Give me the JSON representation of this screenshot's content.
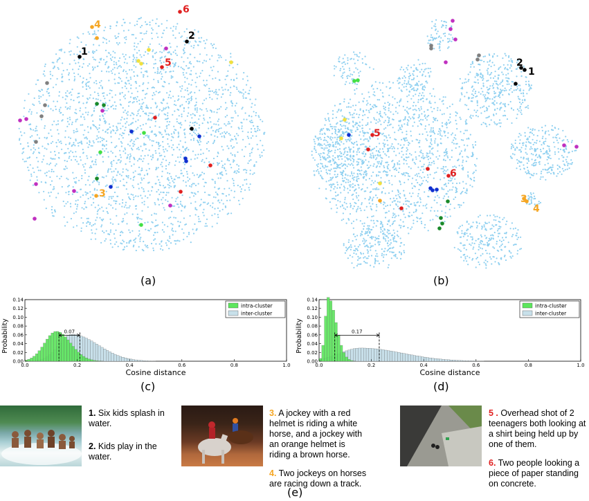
{
  "panels": {
    "a": "(a)",
    "b": "(b)",
    "c": "(c)",
    "d": "(d)",
    "e": "(e)"
  },
  "scatter_markers": {
    "a": [
      {
        "label": "1",
        "color": "#000000"
      },
      {
        "label": "2",
        "color": "#000000"
      },
      {
        "label": "3",
        "color": "#f5a623"
      },
      {
        "label": "4",
        "color": "#f5a623"
      },
      {
        "label": "5",
        "color": "#e02020"
      },
      {
        "label": "6",
        "color": "#e02020"
      }
    ],
    "b": [
      {
        "label": "1",
        "color": "#000000"
      },
      {
        "label": "2",
        "color": "#000000"
      },
      {
        "label": "3",
        "color": "#f5a623"
      },
      {
        "label": "4",
        "color": "#f5a623"
      },
      {
        "label": "5",
        "color": "#e02020"
      },
      {
        "label": "6",
        "color": "#e02020"
      }
    ]
  },
  "chart_data": [
    {
      "type": "bar",
      "panel": "c",
      "xlabel": "Cosine distance",
      "ylabel": "Probability",
      "xlim": [
        0.0,
        1.0
      ],
      "ylim": [
        0.0,
        0.14
      ],
      "xticks": [
        "0.0",
        "0.2",
        "0.4",
        "0.6",
        "0.8",
        "1.0"
      ],
      "yticks": [
        "0.00",
        "0.02",
        "0.04",
        "0.06",
        "0.08",
        "0.10",
        "0.12",
        "0.14"
      ],
      "legend": "top-right",
      "annotation": {
        "text": "0.07",
        "x1": 0.13,
        "x2": 0.21
      },
      "series": [
        {
          "name": "intra-cluster",
          "color": "#5ce65c",
          "peak": 0.12,
          "peak_value": 0.068,
          "spread_left": 0.045,
          "spread_right": 0.055
        },
        {
          "name": "inter-cluster",
          "color": "#c8e0ea",
          "peak": 0.18,
          "peak_value": 0.061,
          "spread_left": 0.05,
          "spread_right": 0.1
        }
      ]
    },
    {
      "type": "bar",
      "panel": "d",
      "xlabel": "Cosine distance",
      "ylabel": "Probability",
      "xlim": [
        0.0,
        1.0
      ],
      "ylim": [
        0.0,
        0.14
      ],
      "xticks": [
        "0.0",
        "0.2",
        "0.4",
        "0.6",
        "0.8",
        "1.0"
      ],
      "yticks": [
        "0.00",
        "0.02",
        "0.04",
        "0.06",
        "0.08",
        "0.10",
        "0.12",
        "0.14"
      ],
      "legend": "top-right",
      "annotation": {
        "text": "0.17",
        "x1": 0.06,
        "x2": 0.23
      },
      "series": [
        {
          "name": "intra-cluster",
          "color": "#5ce65c",
          "peak": 0.035,
          "peak_value": 0.145,
          "spread_left": 0.012,
          "spread_right": 0.03
        },
        {
          "name": "inter-cluster",
          "color": "#c8e0ea",
          "peak": 0.16,
          "peak_value": 0.03,
          "spread_left": 0.08,
          "spread_right": 0.16
        }
      ]
    }
  ],
  "captions": {
    "group1": [
      {
        "num": "1.",
        "text": " Six kids splash in water.",
        "color": "#000000"
      },
      {
        "num": "2.",
        "text": " Kids play in the water.",
        "color": "#000000"
      }
    ],
    "group2": [
      {
        "num": "3.",
        "text": " A jockey with a red helmet is riding a white horse, and a jockey with an orange helmet is riding a brown horse.",
        "color": "#f5a623"
      },
      {
        "num": "4.",
        "text": " Two jockeys on horses are racing down a track.",
        "color": "#f5a623"
      }
    ],
    "group3": [
      {
        "num": "5 .",
        "text": " Overhead shot of 2 teenagers both looking at a shirt being held up by one of them.",
        "color": "#e02020"
      },
      {
        "num": "6.",
        "text": " Two people looking a piece of paper standing on concrete.",
        "color": "#e02020"
      }
    ]
  }
}
